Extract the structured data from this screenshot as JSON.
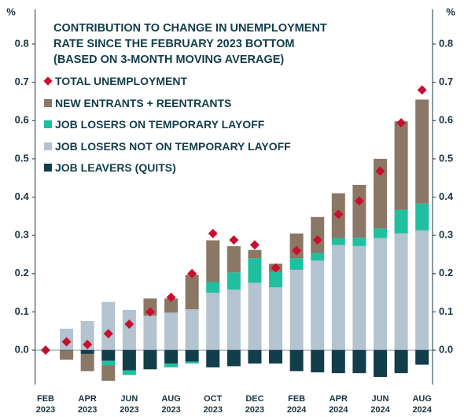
{
  "chart_data": {
    "type": "stacked-bar",
    "title": "CONTRIBUTION TO CHANGE IN UNEMPLOYMENT RATE SINCE THE FEBRUARY 2023 BOTTOM (BASED ON 3-MONTH MOVING AVERAGE)",
    "y_label": "%",
    "y2_label": "%",
    "categories": [
      "FEB 2023",
      null,
      "APR 2023",
      null,
      "JUN 2023",
      null,
      "AUG 2023",
      null,
      "OCT 2023",
      null,
      "DEC 2023",
      null,
      "FEB 2024",
      null,
      "APR 2024",
      null,
      "JUN 2024",
      null,
      "AUG 2024"
    ],
    "series": [
      {
        "name": "JOB LEAVERS (QUITS)",
        "color": "#123d4a",
        "values": [
          0,
          0,
          -0.01,
          -0.028,
          -0.053,
          -0.05,
          -0.035,
          -0.03,
          -0.045,
          -0.042,
          -0.035,
          -0.035,
          -0.055,
          -0.058,
          -0.06,
          -0.06,
          -0.07,
          -0.06,
          -0.038
        ]
      },
      {
        "name": "JOB LOSERS NOT ON TEMPORARY LAYOFF",
        "color": "#b3c3d0",
        "values": [
          0,
          0.056,
          0.076,
          0.126,
          0.105,
          0.09,
          0.098,
          0.107,
          0.15,
          0.158,
          0.176,
          0.164,
          0.21,
          0.234,
          0.275,
          0.272,
          0.293,
          0.305,
          0.313
        ]
      },
      {
        "name": "JOB LOSERS ON TEMPORARY LAYOFF",
        "color": "#1fbf9f",
        "values": [
          0,
          0,
          0,
          -0.012,
          -0.012,
          0,
          -0.01,
          -0.005,
          0.028,
          0.045,
          0.064,
          0.04,
          0.03,
          0.02,
          0.018,
          0.022,
          0.025,
          0.062,
          0.07
        ]
      },
      {
        "name": "NEW ENTRANTS + REENTRANTS",
        "color": "#8b7765",
        "values": [
          0,
          -0.025,
          -0.045,
          -0.04,
          0,
          0.045,
          0.037,
          0.09,
          0.109,
          0.069,
          0.022,
          0.022,
          0.065,
          0.094,
          0.117,
          0.138,
          0.182,
          0.231,
          0.272
        ]
      },
      {
        "name": "TOTAL UNEMPLOYMENT",
        "color": "#c8102e",
        "marker": "diamond",
        "values": [
          0,
          0.022,
          0.015,
          0.043,
          0.068,
          0.1,
          0.138,
          0.2,
          0.305,
          0.288,
          0.275,
          0.215,
          0.26,
          0.288,
          0.355,
          0.39,
          0.468,
          0.594,
          0.68
        ]
      }
    ],
    "ylim": [
      -0.09,
      0.85
    ],
    "yticks": [
      {
        "value": 0,
        "label": "0.0"
      },
      0.1,
      0.2,
      0.3,
      0.4,
      0.5,
      0.6,
      0.7,
      0.8
    ],
    "y2lim": [
      -0.09,
      0.85
    ],
    "y2ticks": [
      {
        "value": 0,
        "label": "0.0"
      },
      0.1,
      0.2,
      0.3,
      0.4,
      0.5,
      0.6,
      0.7,
      0.8
    ],
    "grid": false
  }
}
